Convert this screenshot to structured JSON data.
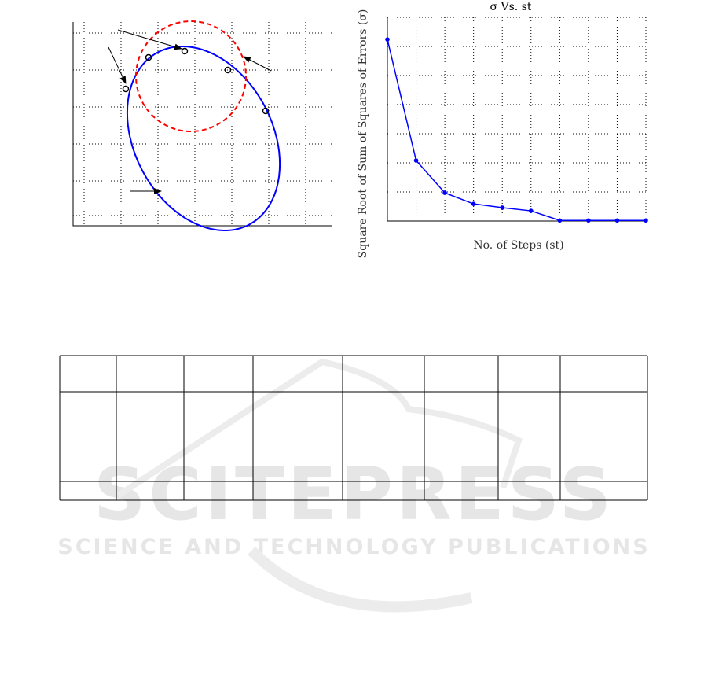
{
  "watermark": {
    "line1": "SCITEPRESS",
    "line2": "SCIENCE AND TECHNOLOGY PUBLICATIONS"
  },
  "chart_data": [
    {
      "type": "diagram",
      "title": "",
      "description_series": [
        {
          "name": "ellipse",
          "color": "#0000ff",
          "style": "solid"
        },
        {
          "name": "circle",
          "color": "#ff0000",
          "style": "dashed"
        }
      ],
      "grid": true
    },
    {
      "type": "line",
      "title": "σ Vs. st",
      "xlabel": "No. of Steps (st)",
      "ylabel": "Square Root of Sum of Squares of Errors (σ)",
      "x": [
        1,
        2,
        3,
        4,
        5,
        6,
        7,
        8,
        9,
        10
      ],
      "values": [
        6.24,
        2.08,
        0.97,
        0.59,
        0.46,
        0.35,
        0.02,
        0.02,
        0.02,
        0.02
      ],
      "xlim": [
        1,
        10
      ],
      "ylim": [
        0,
        7
      ],
      "grid": true,
      "color": "#0000ff"
    }
  ],
  "table": {
    "columns": 8,
    "rows": 3
  }
}
